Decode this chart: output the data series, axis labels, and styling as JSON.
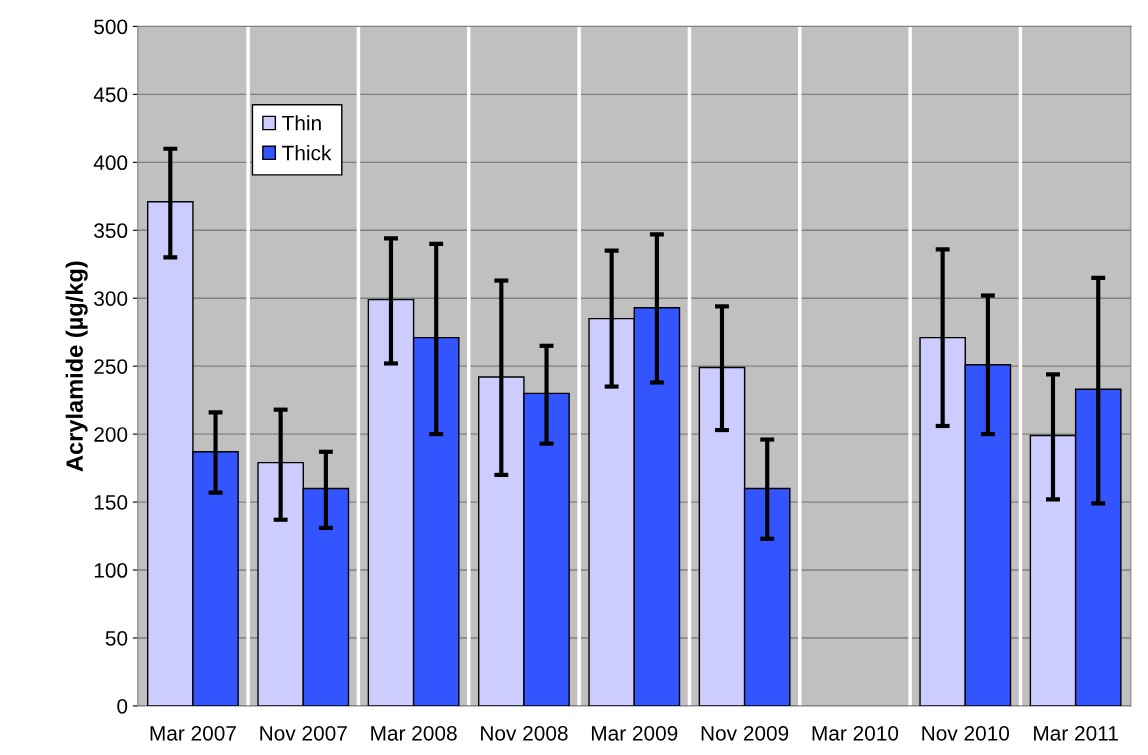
{
  "chart_data": {
    "type": "bar",
    "ylabel": "Acrylamide (µg/kg)",
    "categories": [
      "Mar 2007",
      "Nov 2007",
      "Mar 2008",
      "Nov 2008",
      "Mar 2009",
      "Nov 2009",
      "Mar 2010",
      "Nov 2010",
      "Mar 2011"
    ],
    "series": [
      {
        "name": "Thin",
        "color": "#ccccff",
        "values": [
          371,
          179,
          299,
          242,
          285,
          249,
          null,
          271,
          199
        ],
        "errors": [
          [
            330,
            410
          ],
          [
            137,
            218
          ],
          [
            252,
            344
          ],
          [
            170,
            313
          ],
          [
            235,
            335
          ],
          [
            203,
            294
          ],
          null,
          [
            206,
            336
          ],
          [
            152,
            244
          ]
        ]
      },
      {
        "name": "Thick",
        "color": "#3355ff",
        "values": [
          187,
          160,
          271,
          230,
          293,
          160,
          null,
          251,
          233
        ],
        "errors": [
          [
            157,
            216
          ],
          [
            131,
            187
          ],
          [
            200,
            340
          ],
          [
            193,
            265
          ],
          [
            238,
            347
          ],
          [
            123,
            196
          ],
          null,
          [
            200,
            302
          ],
          [
            149,
            315
          ]
        ]
      }
    ],
    "ylim": [
      0,
      500
    ],
    "yticks": [
      0,
      50,
      100,
      150,
      200,
      250,
      300,
      350,
      400,
      450,
      500
    ],
    "grid": true,
    "legend": "top left"
  }
}
